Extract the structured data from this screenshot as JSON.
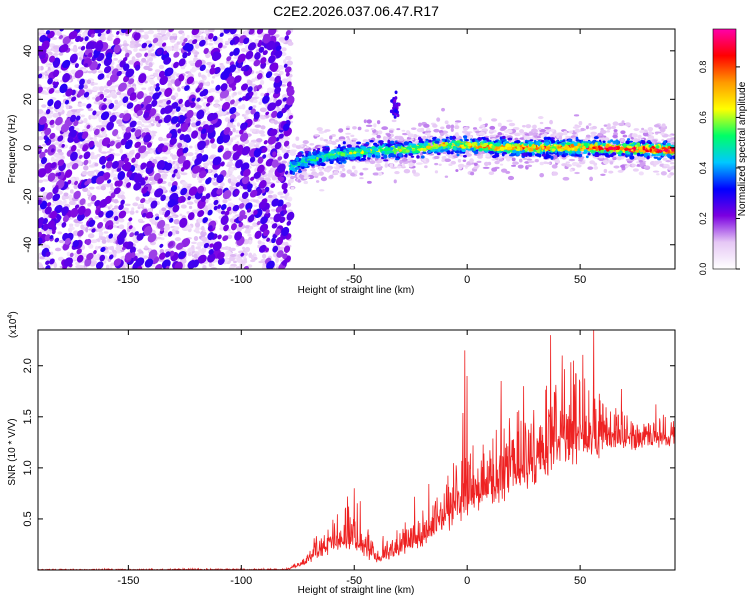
{
  "title": "C2E2.2026.037.06.47.R17",
  "chart_data": [
    {
      "type": "heatmap",
      "xlabel": "Height of straight line (km)",
      "ylabel": "Frequency (Hz)",
      "xlim": [
        -190,
        92
      ],
      "ylim": [
        -50,
        49
      ],
      "xticks": [
        -150,
        -100,
        -50,
        0,
        50
      ],
      "yticks": [
        -40,
        -20,
        0,
        20,
        40
      ],
      "grid": false,
      "colorbar": {
        "label": "Normalized spectral amplitude",
        "range": [
          0.0,
          0.95
        ],
        "ticks": [
          0.0,
          0.2,
          0.4,
          0.6,
          0.8
        ],
        "colormap": [
          "#ffffff",
          "#e6c8f5",
          "#7b00e0",
          "#0000ff",
          "#00c8ff",
          "#00ff66",
          "#ffff00",
          "#ff9900",
          "#ff0000",
          "#ff00aa"
        ]
      },
      "noise_region_x": [
        -190,
        -78
      ],
      "signal_track": [
        {
          "x": -78,
          "y": -8
        },
        {
          "x": -70,
          "y": -5
        },
        {
          "x": -60,
          "y": -3
        },
        {
          "x": -50,
          "y": -2
        },
        {
          "x": -40,
          "y": -1
        },
        {
          "x": -30,
          "y": -1
        },
        {
          "x": -20,
          "y": 0
        },
        {
          "x": -10,
          "y": 1
        },
        {
          "x": 0,
          "y": 1
        },
        {
          "x": 20,
          "y": 0
        },
        {
          "x": 40,
          "y": 0
        },
        {
          "x": 60,
          "y": 0
        },
        {
          "x": 92,
          "y": -1
        }
      ],
      "burst": {
        "x": -32,
        "y": 17
      }
    },
    {
      "type": "line",
      "xlabel": "Height of straight line (km)",
      "ylabel": "SNR (10 * V/V)",
      "yscale_label": "(x10",
      "yscale_exp": "4",
      "scale_factor": 10000,
      "xlim": [
        -190,
        92
      ],
      "ylim": [
        0,
        23500
      ],
      "xticks": [
        -150,
        -100,
        -50,
        0,
        50
      ],
      "yticks": [
        0.5,
        1.0,
        1.5,
        2.0
      ],
      "color": "#ee2222",
      "grid": false,
      "envelope": [
        {
          "x": -190,
          "base": 0,
          "spread": 100
        },
        {
          "x": -80,
          "base": 0,
          "spread": 150
        },
        {
          "x": -72,
          "base": 600,
          "spread": 800
        },
        {
          "x": -60,
          "base": 2000,
          "spread": 3500
        },
        {
          "x": -50,
          "base": 2200,
          "spread": 4500
        },
        {
          "x": -40,
          "base": 800,
          "spread": 2000
        },
        {
          "x": -30,
          "base": 1500,
          "spread": 2500
        },
        {
          "x": -20,
          "base": 2500,
          "spread": 3500
        },
        {
          "x": -12,
          "base": 4000,
          "spread": 5000
        },
        {
          "x": -5,
          "base": 5000,
          "spread": 7500
        },
        {
          "x": 5,
          "base": 6500,
          "spread": 8000
        },
        {
          "x": 20,
          "base": 8000,
          "spread": 8500
        },
        {
          "x": 35,
          "base": 10000,
          "spread": 9000
        },
        {
          "x": 50,
          "base": 11000,
          "spread": 9500
        },
        {
          "x": 65,
          "base": 12000,
          "spread": 4500
        },
        {
          "x": 92,
          "base": 12500,
          "spread": 3000
        }
      ],
      "peaks": [
        {
          "x": -53,
          "y": 7200
        },
        {
          "x": -50,
          "y": 8000
        },
        {
          "x": -1,
          "y": 21500
        },
        {
          "x": 0,
          "y": 19000
        },
        {
          "x": 15,
          "y": 18500
        },
        {
          "x": 25,
          "y": 18000
        },
        {
          "x": 37,
          "y": 23000
        },
        {
          "x": 42,
          "y": 21000
        },
        {
          "x": 47,
          "y": 20500
        },
        {
          "x": 56,
          "y": 23500
        }
      ]
    }
  ]
}
